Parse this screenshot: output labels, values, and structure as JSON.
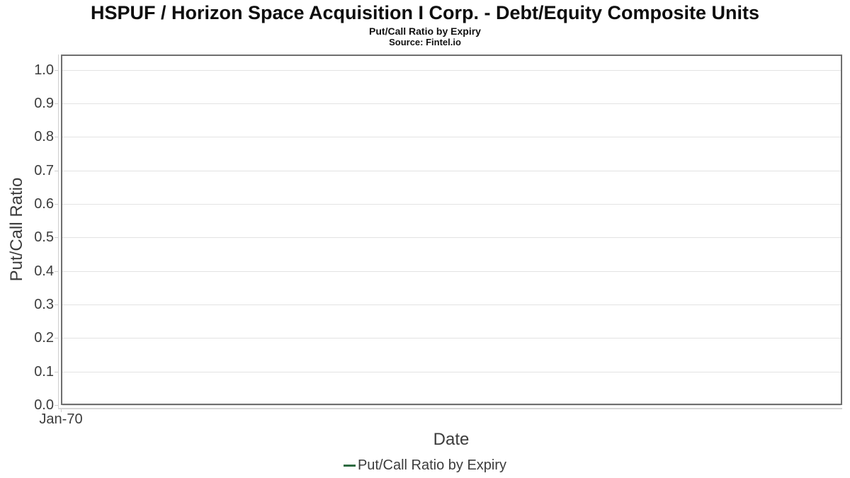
{
  "chart_data": {
    "type": "line",
    "title": "HSPUF / Horizon Space Acquisition I Corp. - Debt/Equity Composite Units",
    "subtitle": "Put/Call Ratio by Expiry",
    "source": "Source: Fintel.io",
    "xlabel": "Date",
    "ylabel": "Put/Call Ratio",
    "ylim": [
      0.0,
      1.046
    ],
    "yticks": [
      0.0,
      0.1,
      0.2,
      0.3,
      0.4,
      0.5,
      0.6,
      0.7,
      0.8,
      0.9,
      1.0
    ],
    "xticks": [
      {
        "label": "Jan-70",
        "frac": 0.0
      }
    ],
    "grid": "horizontal",
    "legend_position": "bottom-center",
    "series": [
      {
        "name": "Put/Call Ratio by Expiry",
        "color": "#2d6b41",
        "x": [],
        "y": []
      }
    ]
  },
  "colors": {
    "frame_border": "#6f6f6f",
    "gridline": "#e3e3e3",
    "axis_line": "#cfcfcf",
    "tick_text": "#3c3c3c",
    "title_text": "#0e0e0e",
    "legend_accent": "#2d6b41"
  }
}
